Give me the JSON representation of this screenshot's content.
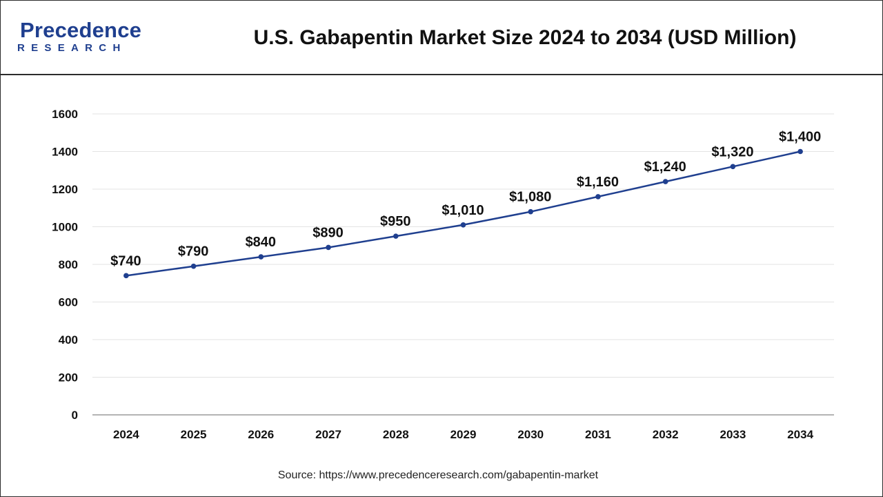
{
  "brand": {
    "name_main": "recedence",
    "name_initial": "P",
    "name_sub": "RESEARCH",
    "color": "#1f3f8f"
  },
  "title": "U.S. Gabapentin Market Size 2024 to 2034 (USD Million)",
  "source": "Source: https://www.precedenceresearch.com/gabapentin-market",
  "chart_data": {
    "type": "line",
    "title": "U.S. Gabapentin Market Size 2024 to 2034 (USD Million)",
    "xlabel": "",
    "ylabel": "",
    "categories": [
      "2024",
      "2025",
      "2026",
      "2027",
      "2028",
      "2029",
      "2030",
      "2031",
      "2032",
      "2033",
      "2034"
    ],
    "series": [
      {
        "name": "U.S. Gabapentin Market Size (USD Million)",
        "values": [
          740,
          790,
          840,
          890,
          950,
          1010,
          1080,
          1160,
          1240,
          1320,
          1400
        ],
        "labels": [
          "$740",
          "$790",
          "$840",
          "$890",
          "$950",
          "$1,010",
          "$1,080",
          "$1,160",
          "$1,240",
          "$1,320",
          "$1,400"
        ],
        "color": "#1f3f8f"
      }
    ],
    "ylim": [
      0,
      1600
    ],
    "yticks": [
      0,
      200,
      400,
      600,
      800,
      1000,
      1200,
      1400,
      1600
    ],
    "grid": true,
    "legend": "none"
  }
}
